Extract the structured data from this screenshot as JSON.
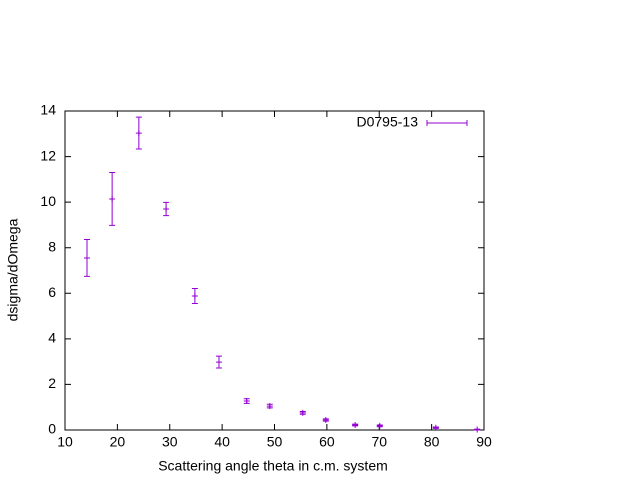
{
  "chart_data": {
    "type": "scatter",
    "xlabel": "Scattering angle theta in c.m. system",
    "ylabel": "dsigma/dOmega",
    "series": [
      {
        "name": "D0795-13",
        "color": "#9400d3",
        "x": [
          14.2,
          19.0,
          24.1,
          29.3,
          34.8,
          39.4,
          44.7,
          49.1,
          55.4,
          59.8,
          65.4,
          70.1,
          80.8,
          88.7
        ],
        "values": [
          7.55,
          10.14,
          13.03,
          9.7,
          5.88,
          2.98,
          1.27,
          1.05,
          0.75,
          0.44,
          0.22,
          0.18,
          0.1,
          0.02
        ],
        "errors": [
          0.81,
          1.16,
          0.7,
          0.29,
          0.33,
          0.26,
          0.1,
          0.08,
          0.06,
          0.05,
          0.04,
          0.04,
          0.03,
          0.02
        ]
      }
    ],
    "xlim": [
      10,
      90
    ],
    "xticks": [
      10,
      20,
      30,
      40,
      50,
      60,
      70,
      80,
      90
    ],
    "ylim": [
      0,
      14
    ],
    "yticks": [
      0,
      2,
      4,
      6,
      8,
      10,
      12,
      14
    ],
    "grid": false,
    "legend": "top-right"
  }
}
